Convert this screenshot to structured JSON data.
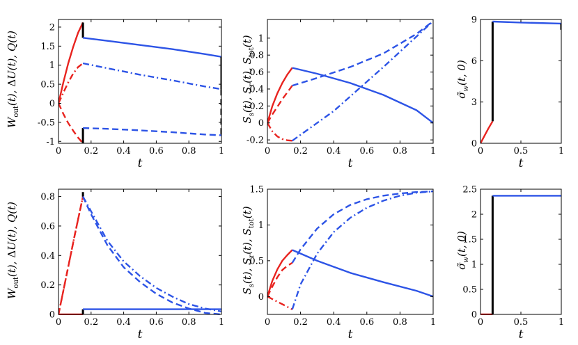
{
  "colors": {
    "red": "#e8231f",
    "blue": "#2d54e6",
    "black": "#000000"
  },
  "chart_data": [
    {
      "id": "top-left",
      "type": "line",
      "xlabel": "t",
      "ylabel": "W_out(t), ΔU(t), Q(t)",
      "xlim": [
        0,
        1
      ],
      "ylim": [
        -1.05,
        2.2
      ],
      "xticks": [
        0,
        0.2,
        0.4,
        0.6,
        0.8,
        1
      ],
      "xtick_labels": [
        "0",
        "0.2",
        "0.4",
        "0.6",
        "0.8",
        "1"
      ],
      "yticks": [
        -1,
        -0.5,
        0,
        0.5,
        1,
        1.5,
        2
      ],
      "ytick_labels": [
        "-1",
        "-0.5",
        "0",
        "0.5",
        "1",
        "1.5",
        "2"
      ],
      "series": [
        {
          "name": "W_out heating",
          "color": "red",
          "dash": "solid",
          "x": [
            0,
            0.03,
            0.06,
            0.09,
            0.12,
            0.15
          ],
          "y": [
            0,
            0.55,
            1.05,
            1.48,
            1.85,
            2.12
          ]
        },
        {
          "name": "ΔU heating",
          "color": "red",
          "dash": "dashdot",
          "x": [
            0,
            0.03,
            0.06,
            0.09,
            0.12,
            0.15
          ],
          "y": [
            0,
            0.28,
            0.55,
            0.78,
            0.95,
            1.05
          ]
        },
        {
          "name": "Q heating",
          "color": "red",
          "dash": "dashed",
          "x": [
            0,
            0.03,
            0.06,
            0.09,
            0.12,
            0.15
          ],
          "y": [
            0,
            -0.28,
            -0.52,
            -0.72,
            -0.9,
            -1.05
          ]
        },
        {
          "name": "W_out jump",
          "color": "black",
          "dash": "solid",
          "x": [
            0.15,
            0.15
          ],
          "y": [
            2.12,
            1.72
          ]
        },
        {
          "name": "Q jump",
          "color": "black",
          "dash": "solid",
          "x": [
            0.15,
            0.15
          ],
          "y": [
            -1.05,
            -0.65
          ]
        },
        {
          "name": "W_out",
          "color": "blue",
          "dash": "solid",
          "x": [
            0.15,
            0.3,
            0.5,
            0.7,
            0.9,
            1
          ],
          "y": [
            1.72,
            1.64,
            1.53,
            1.42,
            1.29,
            1.22
          ]
        },
        {
          "name": "ΔU",
          "color": "blue",
          "dash": "dashdot",
          "x": [
            0.15,
            0.3,
            0.5,
            0.7,
            0.9,
            1
          ],
          "y": [
            1.05,
            0.92,
            0.75,
            0.6,
            0.44,
            0.37
          ]
        },
        {
          "name": "Q",
          "color": "blue",
          "dash": "dashed",
          "x": [
            0.15,
            0.3,
            0.5,
            0.7,
            0.9,
            1
          ],
          "y": [
            -0.65,
            -0.67,
            -0.71,
            -0.76,
            -0.82,
            -0.84
          ]
        },
        {
          "name": "W_out final jump",
          "color": "black",
          "dash": "solid",
          "x": [
            1,
            1
          ],
          "y": [
            1.22,
            0.37
          ]
        },
        {
          "name": "Q final jump",
          "color": "black",
          "dash": "dashed",
          "x": [
            1,
            1
          ],
          "y": [
            0.37,
            -0.84
          ]
        }
      ]
    },
    {
      "id": "top-mid",
      "type": "line",
      "xlabel": "t",
      "ylabel": "S_s(t), S_r(t), S_tot(t)",
      "xlim": [
        0,
        1
      ],
      "ylim": [
        -0.24,
        1.22
      ],
      "xticks": [
        0,
        0.2,
        0.4,
        0.6,
        0.8,
        1
      ],
      "xtick_labels": [
        "0",
        "0.2",
        "0.4",
        "0.6",
        "0.8",
        "1"
      ],
      "yticks": [
        -0.2,
        0,
        0.2,
        0.4,
        0.6,
        0.8,
        1
      ],
      "ytick_labels": [
        "-0.2",
        "0",
        "0.2",
        "0.4",
        "0.6",
        "0.8",
        "1"
      ],
      "series": [
        {
          "name": "S_s heating",
          "color": "red",
          "dash": "solid",
          "x": [
            0,
            0.03,
            0.06,
            0.09,
            0.12,
            0.15
          ],
          "y": [
            0,
            0.2,
            0.35,
            0.47,
            0.57,
            0.65
          ]
        },
        {
          "name": "S_r heating",
          "color": "red",
          "dash": "dashdot",
          "x": [
            0,
            0.03,
            0.06,
            0.09,
            0.12,
            0.15
          ],
          "y": [
            0,
            -0.1,
            -0.16,
            -0.19,
            -0.205,
            -0.21
          ]
        },
        {
          "name": "S_tot heating",
          "color": "red",
          "dash": "dashed",
          "x": [
            0,
            0.03,
            0.06,
            0.09,
            0.12,
            0.15
          ],
          "y": [
            0,
            0.1,
            0.19,
            0.28,
            0.36,
            0.44
          ]
        },
        {
          "name": "S_s",
          "color": "blue",
          "dash": "solid",
          "x": [
            0.15,
            0.3,
            0.5,
            0.7,
            0.9,
            1
          ],
          "y": [
            0.65,
            0.58,
            0.47,
            0.33,
            0.15,
            0.0
          ]
        },
        {
          "name": "S_r",
          "color": "blue",
          "dash": "dashdot",
          "x": [
            0.15,
            0.4,
            0.7,
            1
          ],
          "y": [
            -0.21,
            0.14,
            0.66,
            1.2
          ]
        },
        {
          "name": "S_tot",
          "color": "blue",
          "dash": "dashed",
          "x": [
            0.15,
            0.3,
            0.5,
            0.7,
            0.9,
            1
          ],
          "y": [
            0.44,
            0.53,
            0.66,
            0.82,
            1.05,
            1.2
          ]
        }
      ]
    },
    {
      "id": "top-right",
      "type": "line",
      "xlabel": "t",
      "ylabel": "σ̃_w(t, 0)",
      "xlim": [
        0,
        1
      ],
      "ylim": [
        0,
        9
      ],
      "xticks": [
        0,
        0.5,
        1
      ],
      "xtick_labels": [
        "0",
        "0.5",
        "1"
      ],
      "yticks": [
        0,
        3,
        6,
        9
      ],
      "ytick_labels": [
        "0",
        "3",
        "6",
        "9"
      ],
      "series": [
        {
          "name": "σ heating",
          "color": "red",
          "dash": "solid",
          "x": [
            0,
            0.05,
            0.1,
            0.15
          ],
          "y": [
            0,
            0.55,
            1.1,
            1.6
          ]
        },
        {
          "name": "σ jump",
          "color": "black",
          "dash": "solid",
          "x": [
            0.15,
            0.15
          ],
          "y": [
            1.6,
            8.85
          ]
        },
        {
          "name": "σ",
          "color": "blue",
          "dash": "solid",
          "x": [
            0.15,
            0.5,
            1
          ],
          "y": [
            8.85,
            8.78,
            8.7
          ]
        },
        {
          "name": "σ final jump",
          "color": "black",
          "dash": "solid",
          "x": [
            1,
            1
          ],
          "y": [
            8.7,
            8.25
          ]
        }
      ]
    },
    {
      "id": "bottom-left",
      "type": "line",
      "xlabel": "t",
      "ylabel": "W_out(t), ΔU(t), Q(t)",
      "xlim": [
        0,
        1
      ],
      "ylim": [
        0,
        0.85
      ],
      "xticks": [
        0,
        0.2,
        0.4,
        0.6,
        0.8,
        1
      ],
      "xtick_labels": [
        "0",
        "0.2",
        "0.4",
        "0.6",
        "0.8",
        "1"
      ],
      "yticks": [
        0,
        0.2,
        0.4,
        0.6,
        0.8
      ],
      "ytick_labels": [
        "0",
        "0.2",
        "0.4",
        "0.6",
        "0.8"
      ],
      "series": [
        {
          "name": "W_out heating",
          "color": "red",
          "dash": "solid",
          "x": [
            0,
            0.15
          ],
          "y": [
            0,
            0
          ]
        },
        {
          "name": "ΔU heating",
          "color": "red",
          "dash": "dashdot",
          "x": [
            0,
            0.05,
            0.1,
            0.15
          ],
          "y": [
            0,
            0.27,
            0.54,
            0.8
          ]
        },
        {
          "name": "Q heating",
          "color": "red",
          "dash": "dashed",
          "x": [
            0,
            0.05,
            0.1,
            0.15
          ],
          "y": [
            0,
            0.27,
            0.54,
            0.8
          ]
        },
        {
          "name": "W_out jump",
          "color": "black",
          "dash": "solid",
          "x": [
            0.15,
            0.15
          ],
          "y": [
            0,
            0.035
          ]
        },
        {
          "name": "peak jump",
          "color": "black",
          "dash": "solid",
          "x": [
            0.15,
            0.15
          ],
          "y": [
            0.8,
            0.83
          ]
        },
        {
          "name": "W_out",
          "color": "blue",
          "dash": "solid",
          "x": [
            0.15,
            1
          ],
          "y": [
            0.035,
            0.035
          ]
        },
        {
          "name": "ΔU",
          "color": "blue",
          "dash": "dashdot",
          "x": [
            0.15,
            0.2,
            0.3,
            0.4,
            0.5,
            0.6,
            0.7,
            0.8,
            0.9,
            1
          ],
          "y": [
            0.8,
            0.7,
            0.5,
            0.36,
            0.26,
            0.18,
            0.12,
            0.07,
            0.04,
            0.02
          ]
        },
        {
          "name": "Q",
          "color": "blue",
          "dash": "dashed",
          "x": [
            0.15,
            0.2,
            0.3,
            0.4,
            0.5,
            0.6,
            0.7,
            0.8,
            0.9,
            1
          ],
          "y": [
            0.8,
            0.68,
            0.47,
            0.32,
            0.22,
            0.14,
            0.08,
            0.04,
            0.01,
            0.0
          ]
        }
      ]
    },
    {
      "id": "bottom-mid",
      "type": "line",
      "xlabel": "t",
      "ylabel": "S_s(t), S_r(t), S_tot(t)",
      "xlim": [
        0,
        1
      ],
      "ylim": [
        -0.25,
        1.5
      ],
      "xticks": [
        0,
        0.2,
        0.4,
        0.6,
        0.8,
        1
      ],
      "xtick_labels": [
        "0",
        "0.2",
        "0.4",
        "0.6",
        "0.8",
        "1"
      ],
      "yticks": [
        0,
        0.5,
        1,
        1.5
      ],
      "ytick_labels": [
        "0",
        "0.5",
        "1",
        "1.5"
      ],
      "series": [
        {
          "name": "S_s heating",
          "color": "red",
          "dash": "solid",
          "x": [
            0,
            0.03,
            0.06,
            0.09,
            0.12,
            0.15
          ],
          "y": [
            0,
            0.22,
            0.38,
            0.5,
            0.58,
            0.65
          ]
        },
        {
          "name": "S_r heating",
          "color": "red",
          "dash": "dashdot",
          "x": [
            0,
            0.05,
            0.1,
            0.15
          ],
          "y": [
            0,
            -0.06,
            -0.12,
            -0.18
          ]
        },
        {
          "name": "S_tot heating",
          "color": "red",
          "dash": "dashed",
          "x": [
            0,
            0.03,
            0.06,
            0.09,
            0.12,
            0.15
          ],
          "y": [
            0,
            0.14,
            0.27,
            0.37,
            0.43,
            0.47
          ]
        },
        {
          "name": "S_s",
          "color": "blue",
          "dash": "solid",
          "x": [
            0.15,
            0.3,
            0.5,
            0.7,
            0.9,
            1
          ],
          "y": [
            0.65,
            0.5,
            0.33,
            0.2,
            0.08,
            0.0
          ]
        },
        {
          "name": "S_r",
          "color": "blue",
          "dash": "dashdot",
          "x": [
            0.15,
            0.2,
            0.3,
            0.4,
            0.5,
            0.6,
            0.7,
            0.8,
            0.9,
            1
          ],
          "y": [
            -0.18,
            0.17,
            0.6,
            0.9,
            1.1,
            1.24,
            1.34,
            1.41,
            1.45,
            1.47
          ]
        },
        {
          "name": "S_tot",
          "color": "blue",
          "dash": "dashed",
          "x": [
            0.15,
            0.2,
            0.3,
            0.4,
            0.5,
            0.6,
            0.7,
            0.8,
            0.9,
            1
          ],
          "y": [
            0.47,
            0.66,
            0.95,
            1.15,
            1.28,
            1.36,
            1.41,
            1.44,
            1.46,
            1.47
          ]
        }
      ]
    },
    {
      "id": "bottom-right",
      "type": "line",
      "xlabel": "t",
      "ylabel": "σ̃_w(t, 0)",
      "xlim": [
        0,
        1
      ],
      "ylim": [
        0,
        2.5
      ],
      "xticks": [
        0,
        0.5,
        1
      ],
      "xtick_labels": [
        "0",
        "0.5",
        "1"
      ],
      "yticks": [
        0,
        0.5,
        1,
        1.5,
        2,
        2.5
      ],
      "ytick_labels": [
        "0",
        "0.5",
        "1",
        "1.5",
        "2",
        "2.5"
      ],
      "series": [
        {
          "name": "σ heating",
          "color": "red",
          "dash": "solid",
          "x": [
            0,
            0.15
          ],
          "y": [
            0,
            0
          ]
        },
        {
          "name": "σ jump",
          "color": "black",
          "dash": "solid",
          "x": [
            0.15,
            0.15
          ],
          "y": [
            0,
            2.37
          ]
        },
        {
          "name": "σ",
          "color": "blue",
          "dash": "solid",
          "x": [
            0.15,
            1
          ],
          "y": [
            2.37,
            2.37
          ]
        }
      ]
    }
  ]
}
